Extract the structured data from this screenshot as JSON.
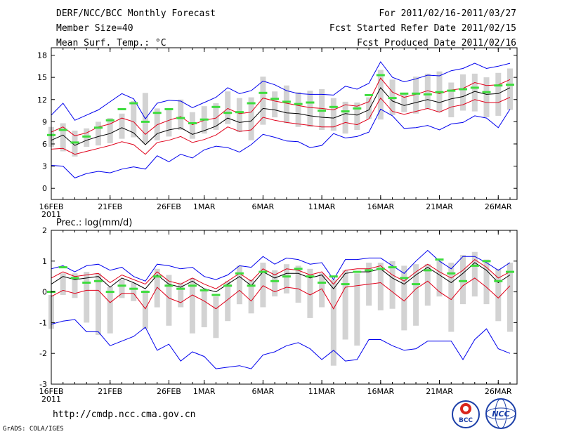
{
  "header": {
    "title": "DERF/NCC/BCC Monthly Forecast",
    "member_size": "Member Size=40",
    "range": "For 2011/02/16-2011/03/27",
    "started": "Fcst Started Refer Date 2011/02/15",
    "produced": "Fcst Produced Date 2011/02/16"
  },
  "footer": {
    "url": "http://cmdp.ncc.cma.gov.cn",
    "grads": "GrADS: COLA/IGES",
    "logo_bcc": "BCC",
    "logo_ncc": "NCC"
  },
  "colors": {
    "ensemble_mean": "#000000",
    "spread": "#e0001a",
    "extremes": "#0000ee",
    "bars": "#d3d3d3",
    "observed": "#3ddc3d",
    "frame": "#000000"
  },
  "chart_data": [
    {
      "type": "line",
      "title": "Mean Surf. Temp.: °C",
      "x_tick_labels": [
        "16FEB",
        "21FEB",
        "26FEB",
        "1MAR",
        "6MAR",
        "11MAR",
        "16MAR",
        "21MAR",
        "26MAR"
      ],
      "x_tick_days": [
        1,
        6,
        11,
        14,
        19,
        24,
        29,
        34,
        39
      ],
      "year_label": "2011",
      "ylim": [
        -1.5,
        19
      ],
      "yticks": [
        0,
        3,
        6,
        9,
        12,
        15,
        18
      ],
      "ytick_labels": [
        "0",
        "3",
        "6",
        "9",
        "12",
        "15",
        "18"
      ],
      "days": [
        1,
        2,
        3,
        4,
        5,
        6,
        7,
        8,
        9,
        10,
        11,
        12,
        13,
        14,
        15,
        16,
        17,
        18,
        19,
        20,
        21,
        22,
        23,
        24,
        25,
        26,
        27,
        28,
        29,
        30,
        31,
        32,
        33,
        34,
        35,
        36,
        37,
        38,
        39,
        40
      ],
      "series": [
        {
          "name": "ensemble mean",
          "values": [
            6.5,
            7.2,
            5.8,
            6.5,
            7.0,
            7.4,
            8.2,
            7.5,
            5.9,
            7.4,
            7.9,
            8.2,
            7.3,
            7.8,
            8.4,
            9.5,
            8.9,
            9.1,
            10.8,
            10.6,
            10.2,
            10.1,
            9.8,
            9.6,
            9.5,
            10.1,
            9.9,
            10.6,
            13.6,
            11.8,
            11.2,
            11.6,
            12.0,
            11.6,
            12.1,
            12.4,
            13.1,
            12.7,
            12.8,
            13.6
          ]
        },
        {
          "name": "spread upper",
          "values": [
            7.6,
            8.3,
            7.1,
            7.5,
            8.3,
            8.7,
            9.5,
            9.0,
            7.3,
            8.6,
            9.2,
            9.7,
            8.6,
            9.2,
            9.5,
            10.8,
            10.1,
            10.3,
            12.2,
            11.8,
            11.5,
            11.2,
            10.9,
            10.8,
            10.6,
            11.3,
            11.1,
            11.7,
            14.9,
            13.0,
            12.3,
            12.7,
            13.2,
            12.8,
            13.3,
            13.5,
            14.3,
            13.9,
            14.0,
            14.7
          ]
        },
        {
          "name": "spread lower",
          "values": [
            5.3,
            5.4,
            4.6,
            5.0,
            5.4,
            5.8,
            6.3,
            5.9,
            4.6,
            6.2,
            6.5,
            7.0,
            6.2,
            6.6,
            7.2,
            8.3,
            7.7,
            7.9,
            9.6,
            9.2,
            8.9,
            8.7,
            8.5,
            8.3,
            8.3,
            8.9,
            8.6,
            9.4,
            12.2,
            10.4,
            10.0,
            10.4,
            10.8,
            10.3,
            11.0,
            11.3,
            12.0,
            11.6,
            11.6,
            12.3
          ]
        },
        {
          "name": "maximum",
          "values": [
            9.9,
            11.5,
            9.2,
            9.9,
            10.6,
            11.7,
            12.8,
            12.1,
            9.4,
            11.5,
            11.9,
            11.8,
            10.9,
            11.6,
            12.3,
            13.6,
            12.8,
            13.2,
            14.5,
            14.0,
            13.2,
            12.8,
            12.7,
            12.7,
            12.6,
            13.8,
            13.4,
            14.2,
            17.1,
            15.0,
            14.4,
            14.8,
            15.3,
            15.2,
            15.9,
            16.2,
            16.9,
            16.2,
            16.5,
            16.9
          ]
        },
        {
          "name": "minimum",
          "values": [
            3.1,
            3.0,
            1.4,
            2.0,
            2.3,
            2.1,
            2.6,
            2.9,
            2.6,
            4.4,
            3.6,
            4.6,
            4.1,
            5.2,
            5.7,
            5.5,
            4.9,
            5.9,
            7.3,
            6.9,
            6.4,
            6.3,
            5.5,
            5.8,
            7.4,
            6.8,
            7.0,
            7.6,
            10.7,
            9.8,
            8.1,
            8.2,
            8.5,
            7.9,
            8.7,
            8.9,
            9.8,
            9.5,
            8.2,
            10.7
          ]
        }
      ],
      "bars": [
        [
          5.6,
          8.3
        ],
        [
          5.0,
          8.8
        ],
        [
          4.3,
          7.8
        ],
        [
          5.6,
          8.1
        ],
        [
          5.8,
          9.0
        ],
        [
          6.1,
          9.5
        ],
        [
          6.7,
          10.1
        ],
        [
          6.9,
          11.8
        ],
        [
          6.1,
          12.9
        ],
        [
          6.5,
          10.8
        ],
        [
          7.0,
          10.6
        ],
        [
          7.9,
          12.0
        ],
        [
          6.7,
          10.3
        ],
        [
          7.4,
          11.1
        ],
        [
          7.9,
          11.5
        ],
        [
          8.7,
          13.1
        ],
        [
          7.6,
          12.2
        ],
        [
          6.5,
          12.3
        ],
        [
          8.6,
          15.1
        ],
        [
          9.6,
          13.1
        ],
        [
          8.8,
          13.9
        ],
        [
          8.3,
          13.0
        ],
        [
          8.3,
          13.2
        ],
        [
          7.9,
          13.4
        ],
        [
          7.8,
          12.2
        ],
        [
          7.4,
          11.7
        ],
        [
          7.9,
          11.6
        ],
        [
          9.4,
          12.3
        ],
        [
          9.3,
          16.0
        ],
        [
          9.9,
          14.7
        ],
        [
          10.3,
          12.9
        ],
        [
          10.1,
          15.1
        ],
        [
          10.7,
          15.5
        ],
        [
          10.3,
          15.8
        ],
        [
          9.6,
          14.3
        ],
        [
          10.5,
          15.4
        ],
        [
          10.4,
          15.5
        ],
        [
          9.6,
          15.0
        ],
        [
          9.8,
          15.6
        ],
        [
          10.6,
          16.2
        ]
      ],
      "observed": [
        7.2,
        7.9,
        6.2,
        7.0,
        8.2,
        9.2,
        10.7,
        11.5,
        9.0,
        10.2,
        10.7,
        9.5,
        8.8,
        9.3,
        11.0,
        10.2,
        10.3,
        11.5,
        12.9,
        12.1,
        11.7,
        11.4,
        11.6,
        10.5,
        11.0,
        10.4,
        10.8,
        12.6,
        15.3,
        12.2,
        12.8,
        12.8,
        12.7,
        13.0,
        13.2,
        13.4,
        13.6,
        13.0,
        13.9,
        14.0
      ]
    },
    {
      "type": "line",
      "title": "Prec.: log(mm/d)",
      "x_tick_labels": [
        "16FEB",
        "21FEB",
        "26FEB",
        "1MAR",
        "6MAR",
        "11MAR",
        "16MAR",
        "21MAR",
        "26MAR"
      ],
      "x_tick_days": [
        1,
        6,
        11,
        14,
        19,
        24,
        29,
        34,
        39
      ],
      "year_label": "2011",
      "ylim": [
        -3,
        2
      ],
      "yticks": [
        -3,
        -2,
        -1,
        0,
        1,
        2
      ],
      "ytick_labels": [
        "-3",
        "-2",
        "-1",
        "0",
        "1",
        "2"
      ],
      "days": [
        1,
        2,
        3,
        4,
        5,
        6,
        7,
        8,
        9,
        10,
        11,
        12,
        13,
        14,
        15,
        16,
        17,
        18,
        19,
        20,
        21,
        22,
        23,
        24,
        25,
        26,
        27,
        28,
        29,
        30,
        31,
        32,
        33,
        34,
        35,
        36,
        37,
        38,
        39,
        40
      ],
      "series": [
        {
          "name": "ensemble mean",
          "values": [
            0.25,
            0.5,
            0.4,
            0.45,
            0.5,
            0.15,
            0.45,
            0.3,
            0.1,
            0.55,
            0.25,
            0.15,
            0.35,
            0.1,
            0.0,
            0.25,
            0.5,
            0.2,
            0.65,
            0.45,
            0.6,
            0.6,
            0.45,
            0.55,
            0.1,
            0.6,
            0.65,
            0.65,
            0.75,
            0.45,
            0.25,
            0.55,
            0.8,
            0.55,
            0.3,
            0.6,
            0.95,
            0.7,
            0.3,
            0.55
          ]
        },
        {
          "name": "spread upper",
          "values": [
            0.45,
            0.65,
            0.5,
            0.55,
            0.6,
            0.3,
            0.55,
            0.4,
            0.25,
            0.65,
            0.35,
            0.25,
            0.45,
            0.25,
            0.1,
            0.35,
            0.6,
            0.35,
            0.75,
            0.55,
            0.75,
            0.7,
            0.55,
            0.65,
            0.25,
            0.7,
            0.75,
            0.75,
            0.85,
            0.55,
            0.35,
            0.65,
            0.9,
            0.65,
            0.45,
            0.7,
            1.05,
            0.8,
            0.45,
            0.65
          ]
        },
        {
          "name": "spread lower",
          "values": [
            -0.15,
            0.05,
            -0.05,
            0.05,
            0.05,
            -0.35,
            -0.05,
            -0.05,
            -0.55,
            0.15,
            -0.2,
            -0.35,
            -0.1,
            -0.3,
            -0.55,
            -0.25,
            0.05,
            -0.3,
            0.2,
            0.0,
            0.15,
            0.1,
            -0.1,
            0.1,
            -0.55,
            0.15,
            0.2,
            0.25,
            0.3,
            0.0,
            -0.3,
            0.1,
            0.35,
            0.0,
            -0.25,
            0.2,
            0.45,
            0.15,
            -0.2,
            0.2
          ]
        },
        {
          "name": "maximum",
          "values": [
            0.75,
            0.85,
            0.65,
            0.85,
            0.9,
            0.7,
            0.8,
            0.5,
            0.35,
            0.9,
            0.85,
            0.75,
            0.8,
            0.5,
            0.4,
            0.55,
            0.85,
            0.8,
            1.15,
            0.9,
            1.1,
            1.05,
            0.9,
            0.95,
            0.4,
            1.05,
            1.05,
            1.1,
            1.1,
            0.85,
            0.6,
            1.0,
            1.35,
            1.0,
            0.75,
            1.15,
            1.15,
            0.95,
            0.7,
            0.95
          ]
        },
        {
          "name": "minimum",
          "values": [
            -1.05,
            -0.95,
            -0.9,
            -1.3,
            -1.3,
            -1.75,
            -1.6,
            -1.45,
            -1.15,
            -1.9,
            -1.7,
            -2.25,
            -1.95,
            -2.1,
            -2.5,
            -2.45,
            -2.4,
            -2.5,
            -2.05,
            -1.95,
            -1.75,
            -1.65,
            -1.85,
            -2.2,
            -1.9,
            -2.25,
            -2.2,
            -1.55,
            -1.55,
            -1.75,
            -1.9,
            -1.85,
            -1.6,
            -1.6,
            -1.6,
            -2.2,
            -1.55,
            -1.2,
            -1.85,
            -2.0
          ]
        }
      ],
      "bars": [
        [
          -1.2,
          -0.1
        ],
        [
          -0.1,
          0.6
        ],
        [
          -0.2,
          0.6
        ],
        [
          -1.0,
          0.65
        ],
        [
          -1.4,
          0.6
        ],
        [
          -1.35,
          0.15
        ],
        [
          -0.2,
          0.4
        ],
        [
          -0.3,
          0.3
        ],
        [
          -1.2,
          0.05
        ],
        [
          -0.5,
          0.75
        ],
        [
          -1.1,
          0.55
        ],
        [
          -0.5,
          0.3
        ],
        [
          -1.35,
          0.45
        ],
        [
          -1.15,
          0.05
        ],
        [
          -1.5,
          -0.15
        ],
        [
          -0.95,
          0.35
        ],
        [
          -0.4,
          0.85
        ],
        [
          -0.7,
          0.4
        ],
        [
          -0.5,
          0.95
        ],
        [
          -0.15,
          0.7
        ],
        [
          -0.05,
          0.9
        ],
        [
          -0.35,
          0.85
        ],
        [
          -0.85,
          0.75
        ],
        [
          -0.5,
          0.6
        ],
        [
          -2.4,
          0.4
        ],
        [
          -1.55,
          0.7
        ],
        [
          -1.75,
          0.6
        ],
        [
          -0.45,
          0.95
        ],
        [
          -0.6,
          0.95
        ],
        [
          -0.55,
          1.0
        ],
        [
          -1.25,
          0.85
        ],
        [
          -1.1,
          0.9
        ],
        [
          -0.45,
          0.9
        ],
        [
          -0.15,
          1.0
        ],
        [
          -1.3,
          0.95
        ],
        [
          -0.4,
          1.2
        ],
        [
          -0.15,
          1.3
        ],
        [
          -0.4,
          1.05
        ],
        [
          -0.95,
          0.75
        ],
        [
          -1.3,
          0.95
        ]
      ],
      "observed": [
        0.0,
        0.8,
        0.45,
        0.3,
        0.35,
        0.0,
        0.2,
        0.1,
        0.0,
        0.5,
        0.2,
        0.1,
        0.2,
        0.05,
        -0.1,
        0.2,
        0.6,
        0.2,
        0.65,
        0.35,
        0.5,
        0.75,
        0.5,
        0.3,
        0.5,
        0.25,
        0.65,
        0.7,
        0.75,
        0.8,
        0.45,
        0.25,
        0.7,
        1.05,
        0.6,
        0.35,
        0.85,
        1.0,
        0.35,
        0.65
      ]
    }
  ]
}
